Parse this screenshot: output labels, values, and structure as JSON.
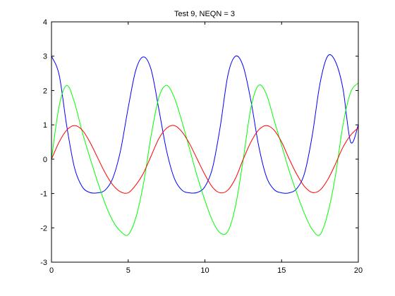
{
  "chart_data": {
    "type": "line",
    "title": "Test 9, NEQN = 3",
    "xlabel": "",
    "ylabel": "",
    "xlim": [
      0,
      20
    ],
    "ylim": [
      -3,
      4
    ],
    "xticks": [
      0,
      5,
      10,
      15,
      20
    ],
    "yticks": [
      -3,
      -2,
      -1,
      0,
      1,
      2,
      3,
      4
    ],
    "xtick_labels": [
      "0",
      "5",
      "10",
      "15",
      "20"
    ],
    "ytick_labels": [
      "-3",
      "-2",
      "-1",
      "0",
      "1",
      "2",
      "3",
      "4"
    ],
    "grid": false,
    "legend": "none",
    "period": 6.2,
    "x": [
      0,
      0.5,
      1,
      1.5,
      2,
      2.5,
      3,
      3.5,
      4,
      4.5,
      5,
      5.5,
      6,
      6.5,
      7,
      7.5,
      8,
      8.5,
      9,
      9.5,
      10,
      10.5,
      11,
      11.5,
      12,
      12.5,
      13,
      13.5,
      14,
      14.5,
      15,
      15.5,
      16,
      16.5,
      17,
      17.5,
      18,
      18.5,
      19,
      19.5,
      20
    ],
    "series": [
      {
        "color": "#0000ff",
        "values": [
          3.0,
          2.45,
          0.95,
          -0.25,
          -0.8,
          -0.97,
          -0.98,
          -0.9,
          -0.55,
          0.25,
          1.5,
          2.6,
          2.98,
          2.6,
          1.45,
          0.25,
          -0.55,
          -0.9,
          -0.98,
          -0.97,
          -0.8,
          -0.25,
          0.95,
          2.45,
          3.0,
          2.7,
          1.7,
          0.4,
          -0.5,
          -0.88,
          -0.98,
          -0.98,
          -0.85,
          -0.4,
          0.7,
          2.2,
          3.0,
          2.85,
          2.05,
          0.5,
          1.0
        ]
      },
      {
        "color": "#00ff00",
        "values": [
          0.0,
          1.55,
          2.15,
          1.65,
          0.8,
          0.05,
          -0.65,
          -1.3,
          -1.8,
          -2.1,
          -2.2,
          -1.7,
          -0.7,
          0.7,
          1.8,
          2.15,
          1.8,
          1.1,
          0.3,
          -0.5,
          -1.2,
          -1.8,
          -2.15,
          -2.1,
          -1.35,
          0.0,
          1.5,
          2.15,
          1.9,
          1.15,
          0.4,
          -0.35,
          -1.0,
          -1.6,
          -2.05,
          -2.2,
          -1.6,
          -0.5,
          1.0,
          1.95,
          2.22
        ]
      },
      {
        "color": "#ff0000",
        "values": [
          0.0,
          0.5,
          0.85,
          0.98,
          0.85,
          0.5,
          0.05,
          -0.4,
          -0.75,
          -0.95,
          -0.98,
          -0.75,
          -0.4,
          0.1,
          0.6,
          0.9,
          0.98,
          0.8,
          0.45,
          0.0,
          -0.45,
          -0.82,
          -0.98,
          -0.9,
          -0.55,
          0.0,
          0.5,
          0.85,
          0.98,
          0.85,
          0.5,
          0.0,
          -0.45,
          -0.8,
          -0.97,
          -0.9,
          -0.6,
          -0.15,
          0.35,
          0.7,
          0.92
        ]
      }
    ]
  }
}
